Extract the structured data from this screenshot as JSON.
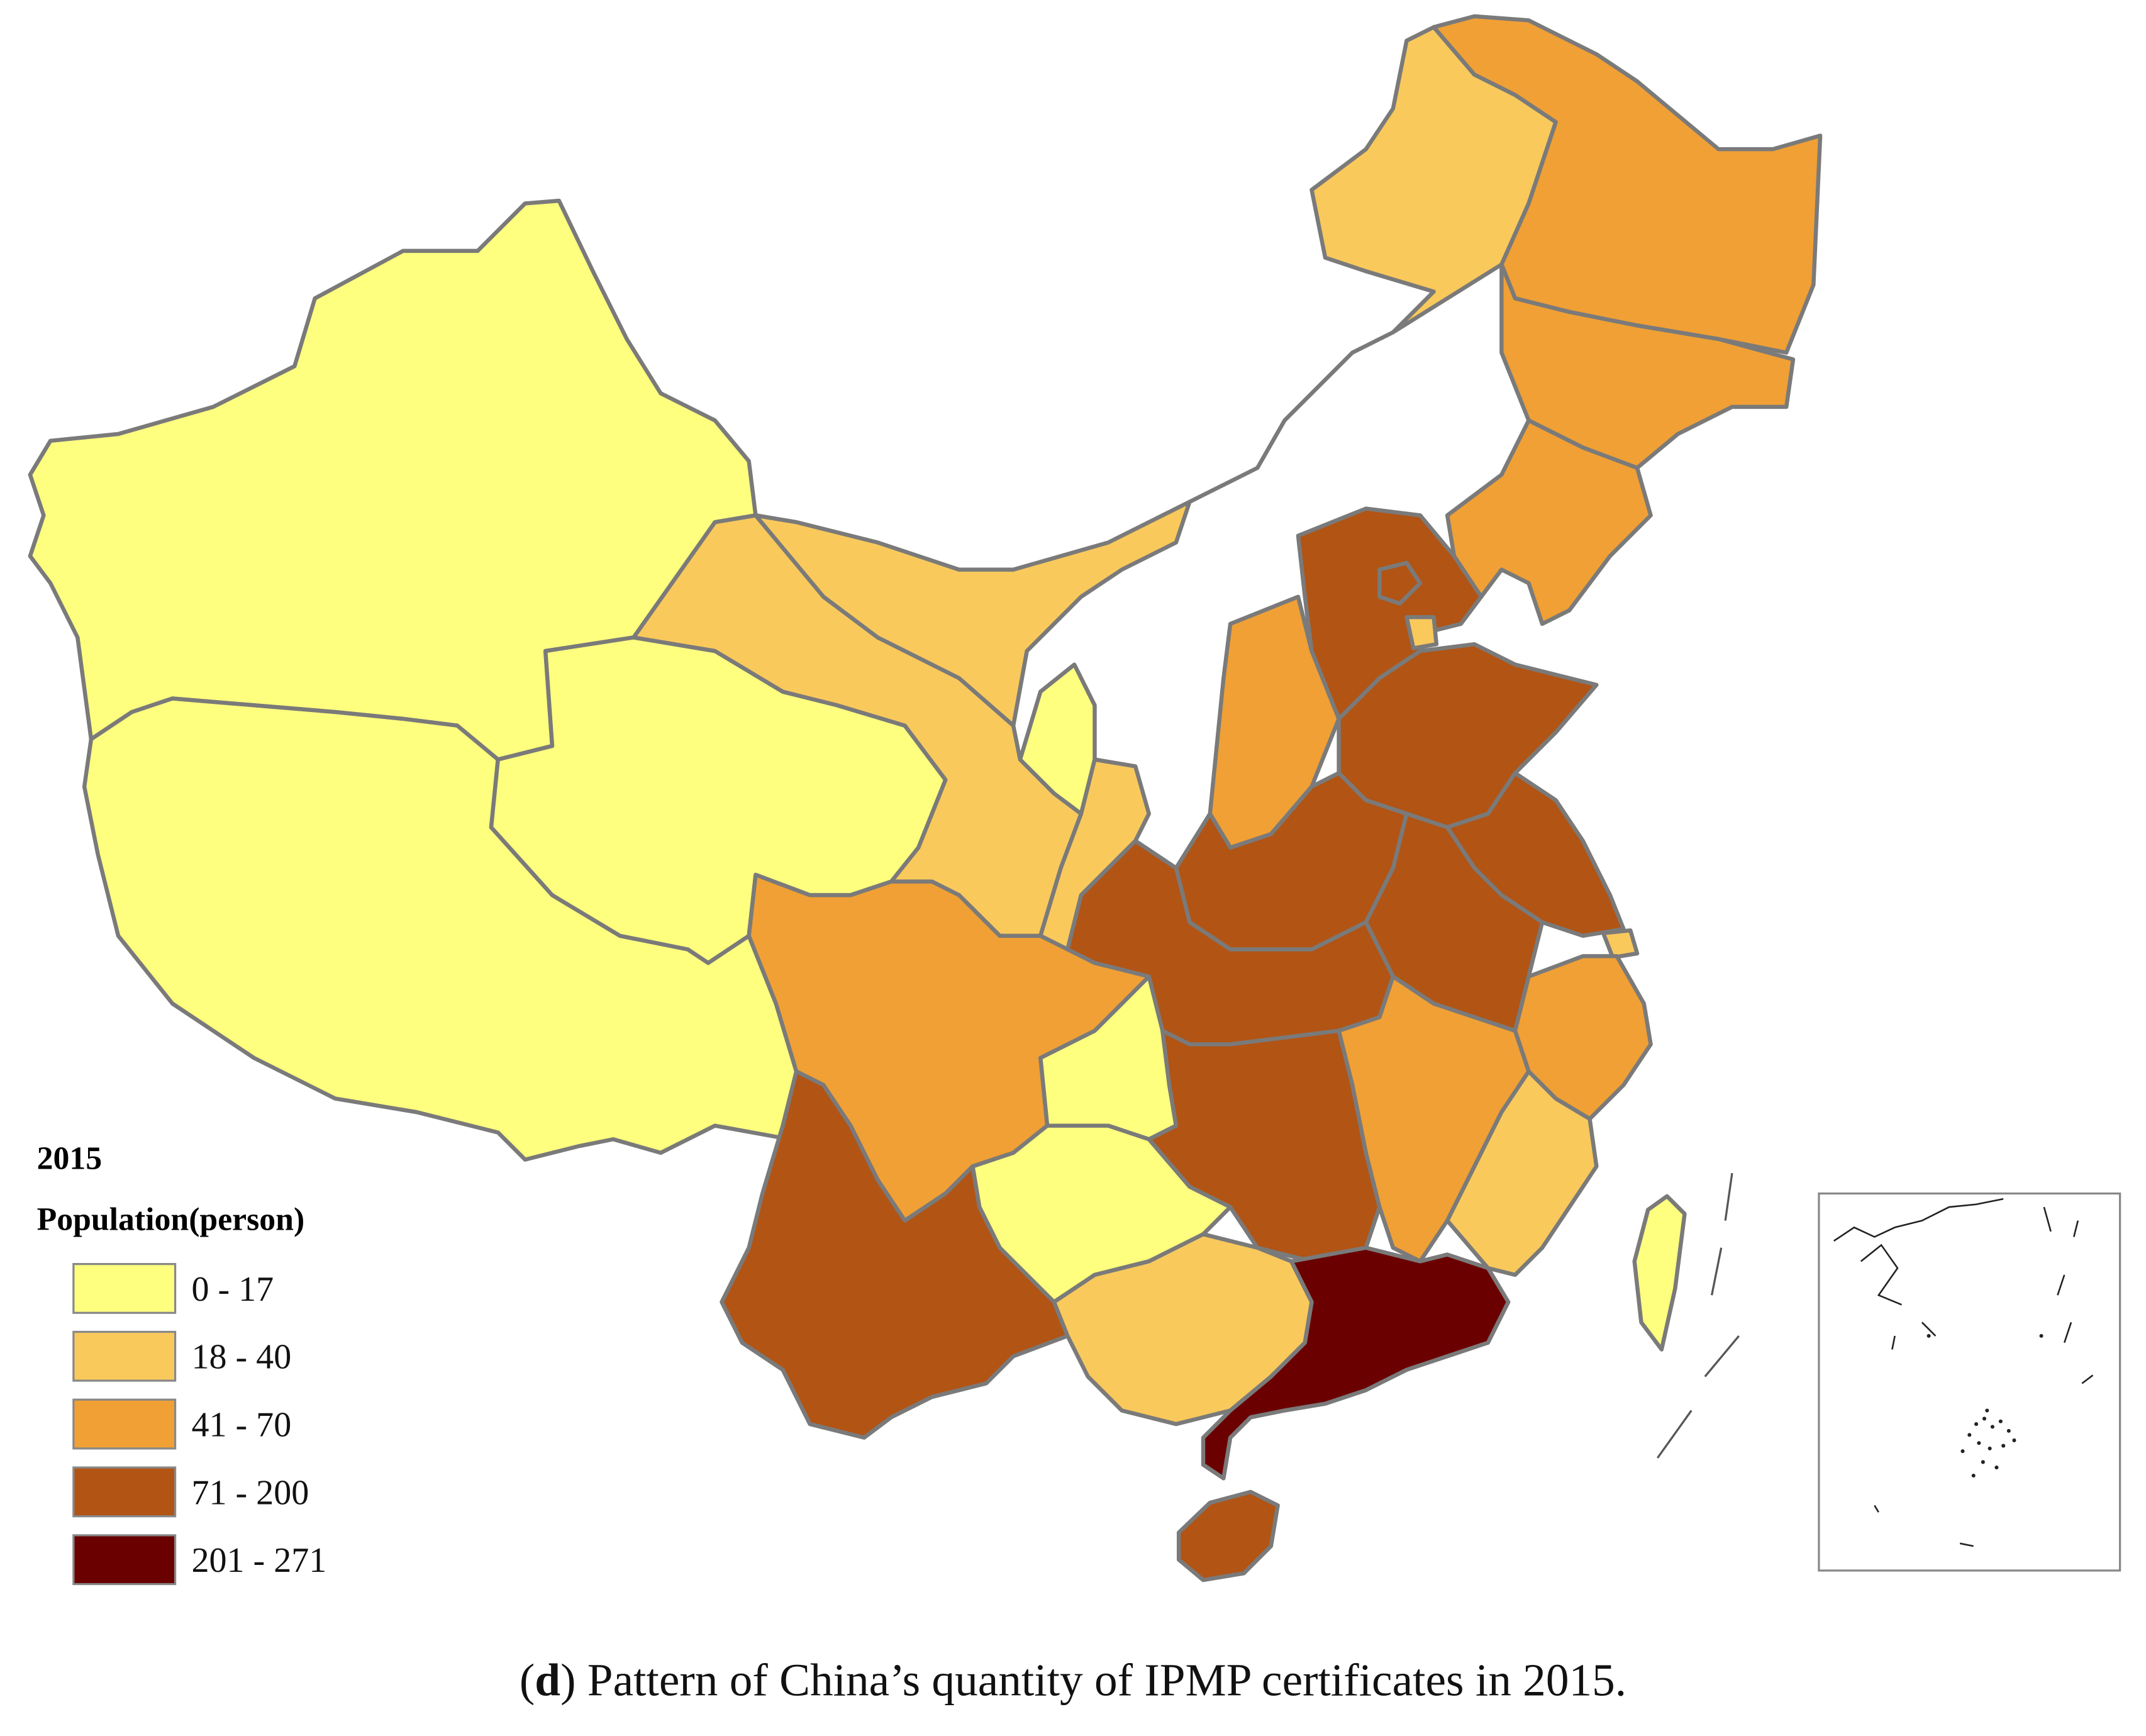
{
  "figure": {
    "caption_letter": "d",
    "caption_text": " Pattern of China’s quantity of IPMP certificates in 2015."
  },
  "legend": {
    "year": "2015",
    "title": "Population(person)",
    "classes": [
      {
        "label": "0 - 17",
        "color": "#FFFF7F"
      },
      {
        "label": "18 - 40",
        "color": "#F9C95C"
      },
      {
        "label": "41 - 70",
        "color": "#F0A035"
      },
      {
        "label": "71 - 200",
        "color": "#B25414"
      },
      {
        "label": "201 - 271",
        "color": "#6B0000"
      }
    ]
  },
  "regions": [
    {
      "id": "xinjiang",
      "class": 0
    },
    {
      "id": "tibet",
      "class": 0
    },
    {
      "id": "qinghai",
      "class": 0
    },
    {
      "id": "ningxia",
      "class": 0
    },
    {
      "id": "chongqing",
      "class": 0
    },
    {
      "id": "guizhou",
      "class": 0
    },
    {
      "id": "taiwan",
      "class": 0
    },
    {
      "id": "inner-mongolia",
      "class": 1
    },
    {
      "id": "gansu",
      "class": 1
    },
    {
      "id": "shaanxi",
      "class": 1
    },
    {
      "id": "guangxi",
      "class": 1
    },
    {
      "id": "fujian",
      "class": 1
    },
    {
      "id": "tianjin",
      "class": 1
    },
    {
      "id": "shanghai",
      "class": 1
    },
    {
      "id": "heilongjiang",
      "class": 2
    },
    {
      "id": "jilin",
      "class": 2
    },
    {
      "id": "liaoning",
      "class": 2
    },
    {
      "id": "sichuan",
      "class": 2
    },
    {
      "id": "shanxi",
      "class": 2
    },
    {
      "id": "jiangxi",
      "class": 2
    },
    {
      "id": "zhejiang",
      "class": 2
    },
    {
      "id": "hebei",
      "class": 3
    },
    {
      "id": "beijing",
      "class": 3
    },
    {
      "id": "shandong",
      "class": 3
    },
    {
      "id": "henan",
      "class": 3
    },
    {
      "id": "hubei",
      "class": 3
    },
    {
      "id": "hunan",
      "class": 3
    },
    {
      "id": "anhui",
      "class": 3
    },
    {
      "id": "jiangsu",
      "class": 3
    },
    {
      "id": "yunnan",
      "class": 3
    },
    {
      "id": "hainan",
      "class": 3
    },
    {
      "id": "guangdong",
      "class": 4
    }
  ]
}
